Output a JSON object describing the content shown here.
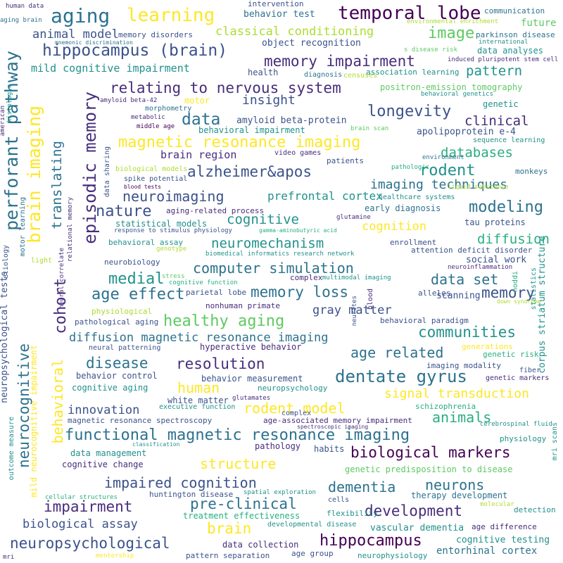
{
  "palette": {
    "dark_purple": "#440154",
    "purple": "#472d7b",
    "indigo": "#3b528b",
    "blue": "#2c728e",
    "teal": "#21918c",
    "green_teal": "#28ae80",
    "green": "#5ec962",
    "lime": "#addc30",
    "yellow": "#fde725"
  },
  "words": [
    {
      "text": "human data",
      "color": "#472d7b"
    },
    {
      "text": "intervention",
      "color": "#3b528b"
    },
    {
      "text": "communication",
      "color": "#2c728e"
    },
    {
      "text": "aging brain",
      "color": "#2c728e"
    },
    {
      "text": "environmental enrichment",
      "color": "#addc30"
    },
    {
      "text": "aging",
      "color": "#2c728e"
    },
    {
      "text": "learning",
      "color": "#fde725"
    },
    {
      "text": "temporal lobe",
      "color": "#440154"
    },
    {
      "text": "behavior test",
      "color": "#2c728e"
    },
    {
      "text": "future",
      "color": "#5ec962"
    },
    {
      "text": "animal model",
      "color": "#3b528b"
    },
    {
      "text": "memory disorders",
      "color": "#3b528b"
    },
    {
      "text": "classical conditioning",
      "color": "#addc30"
    },
    {
      "text": "image",
      "color": "#5ec962"
    },
    {
      "text": "parkinson disease",
      "color": "#2c728e"
    },
    {
      "text": "mnemonic discrimination",
      "color": "#2c728e"
    },
    {
      "text": "international",
      "color": "#21918c"
    },
    {
      "text": "hippocampus (brain)",
      "color": "#3b528b"
    },
    {
      "text": "object recognition",
      "color": "#3b528b"
    },
    {
      "text": "s disease risk",
      "color": "#5ec962"
    },
    {
      "text": "data analyses",
      "color": "#21918c"
    },
    {
      "text": "memory impairment",
      "color": "#472d7b"
    },
    {
      "text": "induced pluripotent stem cell",
      "color": "#472d7b"
    },
    {
      "text": "mild cognitive impairment",
      "color": "#21918c"
    },
    {
      "text": "health",
      "color": "#3b528b"
    },
    {
      "text": "diagnosis",
      "color": "#2c728e"
    },
    {
      "text": "censuses",
      "color": "#addc30"
    },
    {
      "text": "association learning",
      "color": "#21918c"
    },
    {
      "text": "pattern",
      "color": "#21918c"
    },
    {
      "text": "relating to nervous system",
      "color": "#472d7b"
    },
    {
      "text": "positron-emission tomography",
      "color": "#5ec962"
    },
    {
      "text": "insight",
      "color": "#3b528b"
    },
    {
      "text": "behavioral genetics",
      "color": "#21918c"
    },
    {
      "text": "amyloid beta-42",
      "color": "#472d7b"
    },
    {
      "text": "motor",
      "color": "#fde725"
    },
    {
      "text": "morphometry",
      "color": "#2c728e"
    },
    {
      "text": "genetic",
      "color": "#21918c"
    },
    {
      "text": "longevity",
      "color": "#3b528b"
    },
    {
      "text": "metabolic",
      "color": "#472d7b"
    },
    {
      "text": "data",
      "color": "#2c728e"
    },
    {
      "text": "amyloid beta-protein",
      "color": "#3b528b"
    },
    {
      "text": "clinical",
      "color": "#472d7b"
    },
    {
      "text": "middle age",
      "color": "#440154"
    },
    {
      "text": "behavioral impairment",
      "color": "#21918c"
    },
    {
      "text": "brain scan",
      "color": "#5ec962"
    },
    {
      "text": "apolipoprotein e-4",
      "color": "#3b528b"
    },
    {
      "text": "sequence learning",
      "color": "#21918c"
    },
    {
      "text": "magnetic resonance imaging",
      "color": "#fde725"
    },
    {
      "text": "databases",
      "color": "#28ae80"
    },
    {
      "text": "brain region",
      "color": "#472d7b"
    },
    {
      "text": "video games",
      "color": "#472d7b"
    },
    {
      "text": "environment",
      "color": "#2c728e"
    },
    {
      "text": "patients",
      "color": "#3b528b"
    },
    {
      "text": "rodent",
      "color": "#21918c"
    },
    {
      "text": "alzheimer&apos",
      "color": "#3b528b"
    },
    {
      "text": "pathologic",
      "color": "#28ae80"
    },
    {
      "text": "monkeys",
      "color": "#2c728e"
    },
    {
      "text": "biological models",
      "color": "#addc30"
    },
    {
      "text": "spike potential",
      "color": "#3b528b"
    },
    {
      "text": "imaging techniques",
      "color": "#2c728e"
    },
    {
      "text": "blood tests",
      "color": "#440154"
    },
    {
      "text": "neuroimaging",
      "color": "#3b528b"
    },
    {
      "text": "liquid substance",
      "color": "#addc30"
    },
    {
      "text": "prefrontal cortex",
      "color": "#21918c"
    },
    {
      "text": "healthcare systems",
      "color": "#21918c"
    },
    {
      "text": "nature",
      "color": "#3b528b"
    },
    {
      "text": "aging-related process",
      "color": "#472d7b"
    },
    {
      "text": "early diagnosis",
      "color": "#2c728e"
    },
    {
      "text": "modeling",
      "color": "#2c728e"
    },
    {
      "text": "glutamine",
      "color": "#472d7b"
    },
    {
      "text": "statistical models",
      "color": "#21918c"
    },
    {
      "text": "cognitive",
      "color": "#21918c"
    },
    {
      "text": "tau proteins",
      "color": "#3b528b"
    },
    {
      "text": "cognition",
      "color": "#fde725"
    },
    {
      "text": "response to stimulus physiology",
      "color": "#3b528b"
    },
    {
      "text": "gamma-aminobutyric acid",
      "color": "#28ae80"
    },
    {
      "text": "diffusion",
      "color": "#28ae80"
    },
    {
      "text": "behavioral assay",
      "color": "#21918c"
    },
    {
      "text": "neuromechanism",
      "color": "#21918c"
    },
    {
      "text": "enrollment",
      "color": "#3b528b"
    },
    {
      "text": "genotype",
      "color": "#addc30"
    },
    {
      "text": "biomedical informatics research network",
      "color": "#21918c"
    },
    {
      "text": "attention deficit disorder",
      "color": "#3b528b"
    },
    {
      "text": "neurobiology",
      "color": "#3b528b"
    },
    {
      "text": "social work",
      "color": "#3b528b"
    },
    {
      "text": "light",
      "color": "#addc30"
    },
    {
      "text": "computer simulation",
      "color": "#2c728e"
    },
    {
      "text": "neuroinflammation",
      "color": "#472d7b"
    },
    {
      "text": "medial",
      "color": "#21918c"
    },
    {
      "text": "stress",
      "color": "#5ec962"
    },
    {
      "text": "data set",
      "color": "#2c728e"
    },
    {
      "text": "age effect",
      "color": "#2c728e"
    },
    {
      "text": "complex",
      "color": "#472d7b"
    },
    {
      "text": "multimodal imaging",
      "color": "#21918c"
    },
    {
      "text": "memory",
      "color": "#3b528b"
    },
    {
      "text": "cognitive function",
      "color": "#28ae80"
    },
    {
      "text": "memory loss",
      "color": "#2c728e"
    },
    {
      "text": "scanning",
      "color": "#3b528b"
    },
    {
      "text": "alleles",
      "color": "#3b528b"
    },
    {
      "text": "parietal lobe",
      "color": "#3b528b"
    },
    {
      "text": "down syndrome",
      "color": "#addc30"
    },
    {
      "text": "nonhuman primate",
      "color": "#472d7b"
    },
    {
      "text": "gray matter",
      "color": "#3b528b"
    },
    {
      "text": "physiological",
      "color": "#addc30"
    },
    {
      "text": "healthy aging",
      "color": "#5ec962"
    },
    {
      "text": "pathological aging",
      "color": "#3b528b"
    },
    {
      "text": "behavioral paradigm",
      "color": "#3b528b"
    },
    {
      "text": "communities",
      "color": "#21918c"
    },
    {
      "text": "diffusion magnetic resonance imaging",
      "color": "#2c728e"
    },
    {
      "text": "neural patterning",
      "color": "#3b528b"
    },
    {
      "text": "hyperactive behavior",
      "color": "#472d7b"
    },
    {
      "text": "generations",
      "color": "#fde725"
    },
    {
      "text": "age related",
      "color": "#2c728e"
    },
    {
      "text": "disease",
      "color": "#2c728e"
    },
    {
      "text": "genetic risk",
      "color": "#28ae80"
    },
    {
      "text": "resolution",
      "color": "#472d7b"
    },
    {
      "text": "behavior control",
      "color": "#3b528b"
    },
    {
      "text": "behavior measurement",
      "color": "#3b528b"
    },
    {
      "text": "imaging modality",
      "color": "#3b528b"
    },
    {
      "text": "fiber",
      "color": "#3b528b"
    },
    {
      "text": "dentate gyrus",
      "color": "#2c728e"
    },
    {
      "text": "genetic markers",
      "color": "#472d7b"
    },
    {
      "text": "cognitive aging",
      "color": "#21918c"
    },
    {
      "text": "human",
      "color": "#fde725"
    },
    {
      "text": "neuropsychology",
      "color": "#21918c"
    },
    {
      "text": "signal transduction",
      "color": "#fde725"
    },
    {
      "text": "glutamates",
      "color": "#472d7b"
    },
    {
      "text": "white matter",
      "color": "#3b528b"
    },
    {
      "text": "schizophrenia",
      "color": "#28ae80"
    },
    {
      "text": "innovation",
      "color": "#3b528b"
    },
    {
      "text": "executive function",
      "color": "#21918c"
    },
    {
      "text": "rodent model",
      "color": "#fde725"
    },
    {
      "text": "complex",
      "color": "#3b528b"
    },
    {
      "text": "animals",
      "color": "#28ae80"
    },
    {
      "text": "magnetic resonance spectroscopy",
      "color": "#3b528b"
    },
    {
      "text": "age-associated memory impairment",
      "color": "#472d7b"
    },
    {
      "text": "cerebrospinal fluid",
      "color": "#21918c"
    },
    {
      "text": "spectroscopic imaging",
      "color": "#472d7b"
    },
    {
      "text": "functional magnetic resonance imaging",
      "color": "#2c728e"
    },
    {
      "text": "classification",
      "color": "#21918c"
    },
    {
      "text": "pathology",
      "color": "#472d7b"
    },
    {
      "text": "habits",
      "color": "#3b528b"
    },
    {
      "text": "physiology",
      "color": "#21918c"
    },
    {
      "text": "data management",
      "color": "#21918c"
    },
    {
      "text": "biological markers",
      "color": "#440154"
    },
    {
      "text": "structure",
      "color": "#fde725"
    },
    {
      "text": "cognitive change",
      "color": "#472d7b"
    },
    {
      "text": "genetic predisposition to disease",
      "color": "#5ec962"
    },
    {
      "text": "impaired cognition",
      "color": "#3b528b"
    },
    {
      "text": "dementia",
      "color": "#2c728e"
    },
    {
      "text": "neurons",
      "color": "#2c728e"
    },
    {
      "text": "therapy development",
      "color": "#2c728e"
    },
    {
      "text": "cellular structures",
      "color": "#28ae80"
    },
    {
      "text": "huntington disease",
      "color": "#3b528b"
    },
    {
      "text": "spatial exploration",
      "color": "#21918c"
    },
    {
      "text": "impairment",
      "color": "#472d7b"
    },
    {
      "text": "pre-clinical",
      "color": "#2c728e"
    },
    {
      "text": "development",
      "color": "#472d7b"
    },
    {
      "text": "cells",
      "color": "#3b528b"
    },
    {
      "text": "molecular",
      "color": "#addc30"
    },
    {
      "text": "treatment effectiveness",
      "color": "#28ae80"
    },
    {
      "text": "flexibility",
      "color": "#21918c"
    },
    {
      "text": "detection",
      "color": "#21918c"
    },
    {
      "text": "biological assay",
      "color": "#3b528b"
    },
    {
      "text": "brain",
      "color": "#fde725"
    },
    {
      "text": "developmental disease",
      "color": "#21918c"
    },
    {
      "text": "vascular dementia",
      "color": "#21918c"
    },
    {
      "text": "age difference",
      "color": "#472d7b"
    },
    {
      "text": "neuropsychological",
      "color": "#3b528b"
    },
    {
      "text": "data collection",
      "color": "#472d7b"
    },
    {
      "text": "hippocampus",
      "color": "#440154"
    },
    {
      "text": "cognitive testing",
      "color": "#21918c"
    },
    {
      "text": "entorhinal cortex",
      "color": "#2c728e"
    },
    {
      "text": "mri",
      "color": "#472d7b"
    },
    {
      "text": "mentorship",
      "color": "#fde725"
    },
    {
      "text": "pattern separation",
      "color": "#3b528b"
    },
    {
      "text": "age group",
      "color": "#3b528b"
    },
    {
      "text": "neurophysiology",
      "color": "#21918c"
    },
    {
      "text": "perforant pathway",
      "color": "#2c728e"
    },
    {
      "text": "brain imaging",
      "color": "#fde725"
    },
    {
      "text": "episodic memory",
      "color": "#472d7b"
    },
    {
      "text": "translating",
      "color": "#2c728e"
    },
    {
      "text": "cohort",
      "color": "#472d7b"
    },
    {
      "text": "behavioral",
      "color": "#fde725"
    },
    {
      "text": "neurocognitive",
      "color": "#2c728e"
    },
    {
      "text": "neuropsychological tests",
      "color": "#3b528b"
    },
    {
      "text": "mild neurocognitive impairment",
      "color": "#fde725"
    },
    {
      "text": "outcome measure",
      "color": "#21918c"
    },
    {
      "text": "american",
      "color": "#472d7b"
    },
    {
      "text": "histologic",
      "color": "#21918c"
    },
    {
      "text": "motor learning",
      "color": "#2c728e"
    },
    {
      "text": "relational memory",
      "color": "#472d7b"
    },
    {
      "text": "etiology",
      "color": "#3b528b"
    },
    {
      "text": "neural correlate",
      "color": "#472d7b"
    },
    {
      "text": "data sharing",
      "color": "#3b528b"
    },
    {
      "text": "blood",
      "color": "#472d7b"
    },
    {
      "text": "noddi",
      "color": "#28ae80"
    },
    {
      "text": "statistics",
      "color": "#21918c"
    },
    {
      "text": "corpus striatum structure",
      "color": "#21918c"
    },
    {
      "text": "mri scans",
      "color": "#21918c"
    },
    {
      "text": "neurites",
      "color": "#3b528b"
    }
  ]
}
